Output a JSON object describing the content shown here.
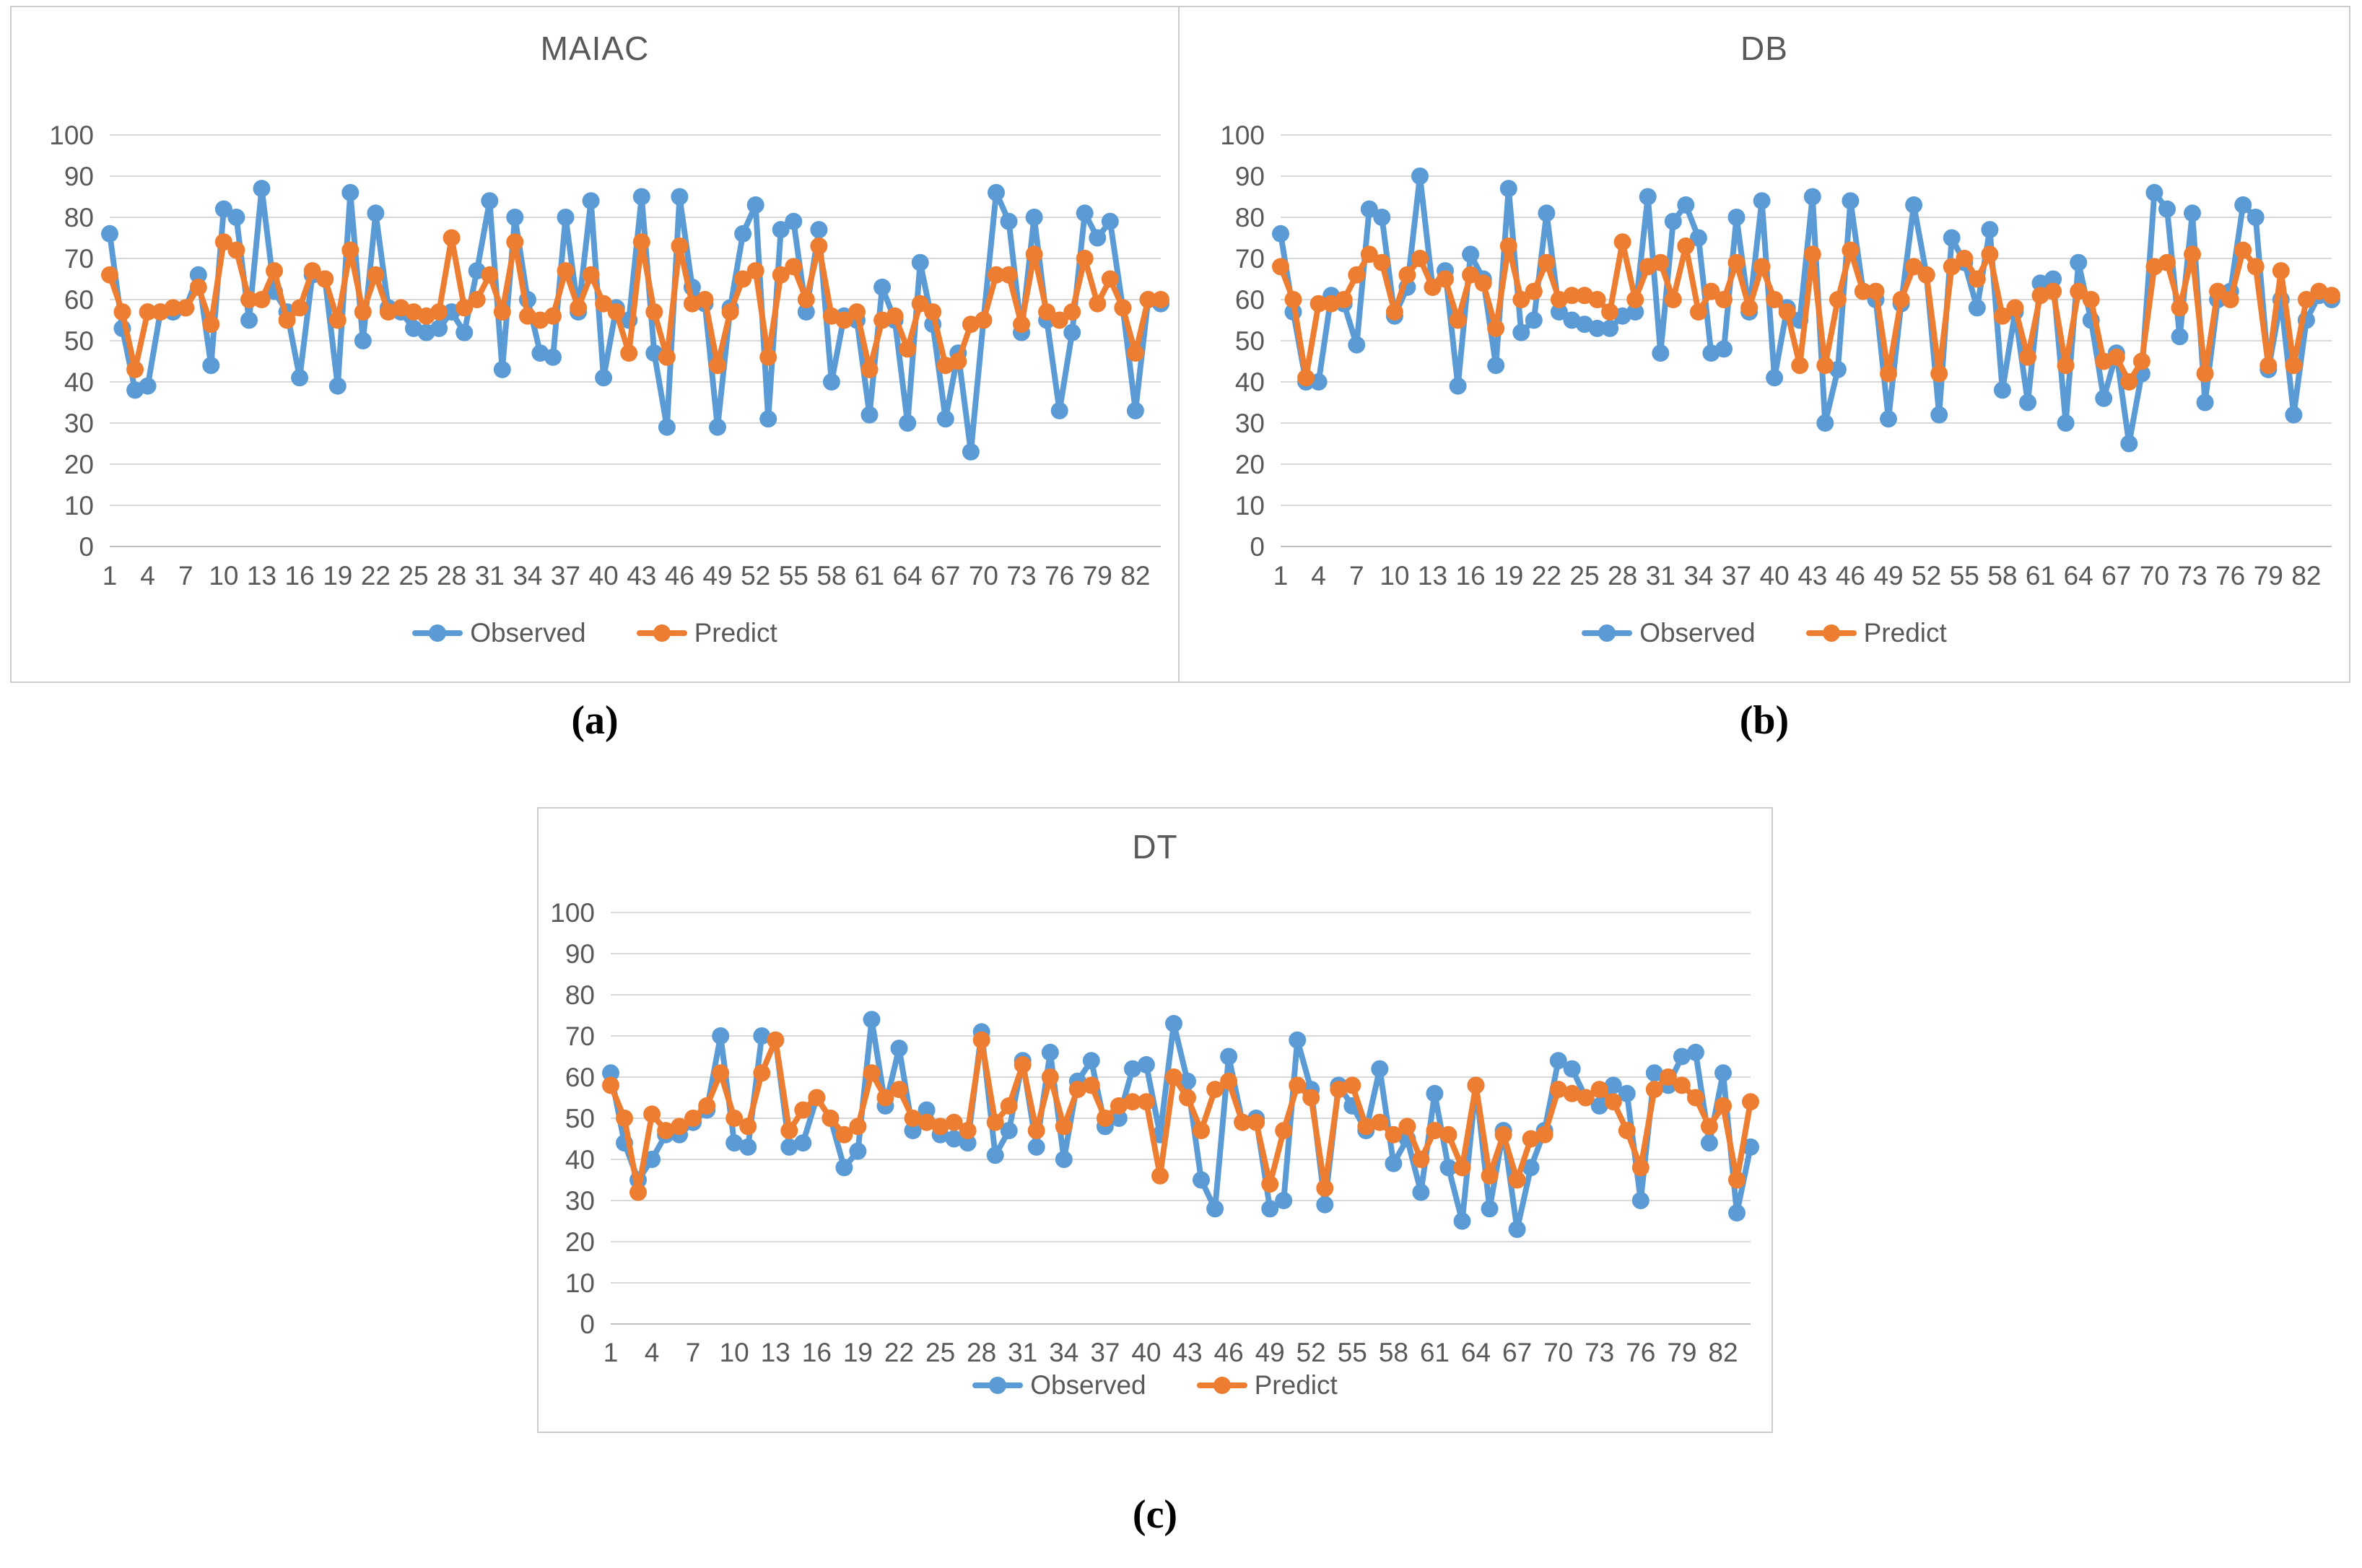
{
  "colors": {
    "observed": "#5B9BD5",
    "predict": "#ED7D31",
    "grid": "#D9D9D9",
    "axis_line": "#BFBFBF",
    "axis_text": "#595959",
    "title_text": "#595959"
  },
  "figure_labels": {
    "a": "(a)",
    "b": "(b)",
    "c": "(c)"
  },
  "chart_data": [
    {
      "type": "line",
      "title": "MAIAC",
      "ylim": [
        0,
        100
      ],
      "grid": true,
      "legend_position": "bottom",
      "y_ticks": [
        0,
        10,
        20,
        30,
        40,
        50,
        60,
        70,
        80,
        90,
        100
      ],
      "x_ticks": [
        1,
        4,
        7,
        10,
        13,
        16,
        19,
        22,
        25,
        28,
        31,
        34,
        37,
        40,
        43,
        46,
        49,
        52,
        55,
        58,
        61,
        64,
        67,
        70,
        73,
        76,
        79,
        82
      ],
      "series": [
        {
          "name": "Observed",
          "color_key": "observed",
          "values": [
            76,
            53,
            38,
            39,
            57,
            57,
            58,
            66,
            44,
            82,
            80,
            55,
            87,
            62,
            57,
            41,
            66,
            65,
            39,
            86,
            50,
            81,
            58,
            57,
            53,
            52,
            53,
            57,
            52,
            67,
            84,
            43,
            80,
            60,
            47,
            46,
            80,
            57,
            84,
            41,
            58,
            55,
            85,
            47,
            29,
            85,
            63,
            59,
            29,
            58,
            76,
            83,
            31,
            77,
            79,
            57,
            77,
            40,
            56,
            55,
            32,
            63,
            55,
            30,
            69,
            54,
            31,
            47,
            23,
            55,
            86,
            79,
            52,
            80,
            55,
            33,
            52,
            81,
            75,
            79,
            58,
            33,
            60,
            59
          ]
        },
        {
          "name": "Predict",
          "color_key": "predict",
          "values": [
            66,
            57,
            43,
            57,
            57,
            58,
            58,
            63,
            54,
            74,
            72,
            60,
            60,
            67,
            55,
            58,
            67,
            65,
            55,
            72,
            57,
            66,
            57,
            58,
            57,
            56,
            57,
            75,
            58,
            60,
            66,
            57,
            74,
            56,
            55,
            56,
            67,
            58,
            66,
            59,
            57,
            47,
            74,
            57,
            46,
            73,
            59,
            60,
            44,
            57,
            65,
            67,
            46,
            66,
            68,
            60,
            73,
            56,
            55,
            57,
            43,
            55,
            56,
            48,
            59,
            57,
            44,
            45,
            54,
            55,
            66,
            66,
            54,
            71,
            57,
            55,
            57,
            70,
            59,
            65,
            58,
            47,
            60,
            60
          ]
        }
      ]
    },
    {
      "type": "line",
      "title": "DB",
      "ylim": [
        0,
        100
      ],
      "grid": true,
      "legend_position": "bottom",
      "y_ticks": [
        0,
        10,
        20,
        30,
        40,
        50,
        60,
        70,
        80,
        90,
        100
      ],
      "x_ticks": [
        1,
        4,
        7,
        10,
        13,
        16,
        19,
        22,
        25,
        28,
        31,
        34,
        37,
        40,
        43,
        46,
        49,
        52,
        55,
        58,
        61,
        64,
        67,
        70,
        73,
        76,
        79,
        82
      ],
      "series": [
        {
          "name": "Observed",
          "color_key": "observed",
          "values": [
            76,
            57,
            40,
            40,
            61,
            59,
            49,
            82,
            80,
            56,
            63,
            90,
            63,
            67,
            39,
            71,
            65,
            44,
            87,
            52,
            55,
            81,
            57,
            55,
            54,
            53,
            53,
            56,
            57,
            85,
            47,
            79,
            83,
            75,
            47,
            48,
            80,
            57,
            84,
            41,
            58,
            55,
            85,
            30,
            43,
            84,
            62,
            60,
            31,
            59,
            83,
            66,
            32,
            75,
            69,
            58,
            77,
            38,
            57,
            35,
            64,
            65,
            30,
            69,
            55,
            36,
            47,
            25,
            42,
            86,
            82,
            51,
            81,
            35,
            60,
            62,
            83,
            80,
            43,
            60,
            32,
            55,
            61,
            60
          ]
        },
        {
          "name": "Predict",
          "color_key": "predict",
          "values": [
            68,
            60,
            41,
            59,
            59,
            60,
            66,
            71,
            69,
            57,
            66,
            70,
            63,
            65,
            55,
            66,
            64,
            53,
            73,
            60,
            62,
            69,
            60,
            61,
            61,
            60,
            57,
            74,
            60,
            68,
            69,
            60,
            73,
            57,
            62,
            60,
            69,
            58,
            68,
            60,
            57,
            44,
            71,
            44,
            60,
            72,
            62,
            62,
            42,
            60,
            68,
            66,
            42,
            68,
            70,
            65,
            71,
            56,
            58,
            46,
            61,
            62,
            44,
            62,
            60,
            45,
            46,
            40,
            45,
            68,
            69,
            58,
            71,
            42,
            62,
            60,
            72,
            68,
            44,
            67,
            44,
            60,
            62,
            61
          ]
        }
      ]
    },
    {
      "type": "line",
      "title": "DT",
      "ylim": [
        0,
        100
      ],
      "grid": true,
      "legend_position": "bottom",
      "y_ticks": [
        0,
        10,
        20,
        30,
        40,
        50,
        60,
        70,
        80,
        90,
        100
      ],
      "x_ticks": [
        1,
        4,
        7,
        10,
        13,
        16,
        19,
        22,
        25,
        28,
        31,
        34,
        37,
        40,
        43,
        46,
        49,
        52,
        55,
        58,
        61,
        64,
        67,
        70,
        73,
        76,
        79,
        82
      ],
      "series": [
        {
          "name": "Observed",
          "color_key": "observed",
          "values": [
            61,
            44,
            35,
            40,
            46,
            46,
            49,
            52,
            70,
            44,
            43,
            70,
            69,
            43,
            44,
            55,
            50,
            38,
            42,
            74,
            53,
            67,
            47,
            52,
            46,
            45,
            44,
            71,
            41,
            47,
            64,
            43,
            66,
            40,
            59,
            64,
            48,
            50,
            62,
            63,
            46,
            73,
            59,
            35,
            28,
            65,
            49,
            50,
            28,
            30,
            69,
            57,
            29,
            58,
            53,
            47,
            62,
            39,
            45,
            32,
            56,
            38,
            25,
            58,
            28,
            47,
            23,
            38,
            47,
            64,
            62,
            55,
            53,
            58,
            56,
            30,
            61,
            58,
            65,
            66,
            44,
            61,
            27,
            43
          ]
        },
        {
          "name": "Predict",
          "color_key": "predict",
          "values": [
            58,
            50,
            32,
            51,
            47,
            48,
            50,
            53,
            61,
            50,
            48,
            61,
            69,
            47,
            52,
            55,
            50,
            46,
            48,
            61,
            55,
            57,
            50,
            49,
            48,
            49,
            47,
            69,
            49,
            53,
            63,
            47,
            60,
            48,
            57,
            58,
            50,
            53,
            54,
            54,
            36,
            60,
            55,
            47,
            57,
            59,
            49,
            49,
            34,
            47,
            58,
            55,
            33,
            57,
            58,
            48,
            49,
            46,
            48,
            40,
            47,
            46,
            38,
            58,
            36,
            46,
            35,
            45,
            46,
            57,
            56,
            55,
            57,
            54,
            47,
            38,
            57,
            60,
            58,
            55,
            48,
            53,
            35,
            54
          ]
        }
      ]
    }
  ]
}
